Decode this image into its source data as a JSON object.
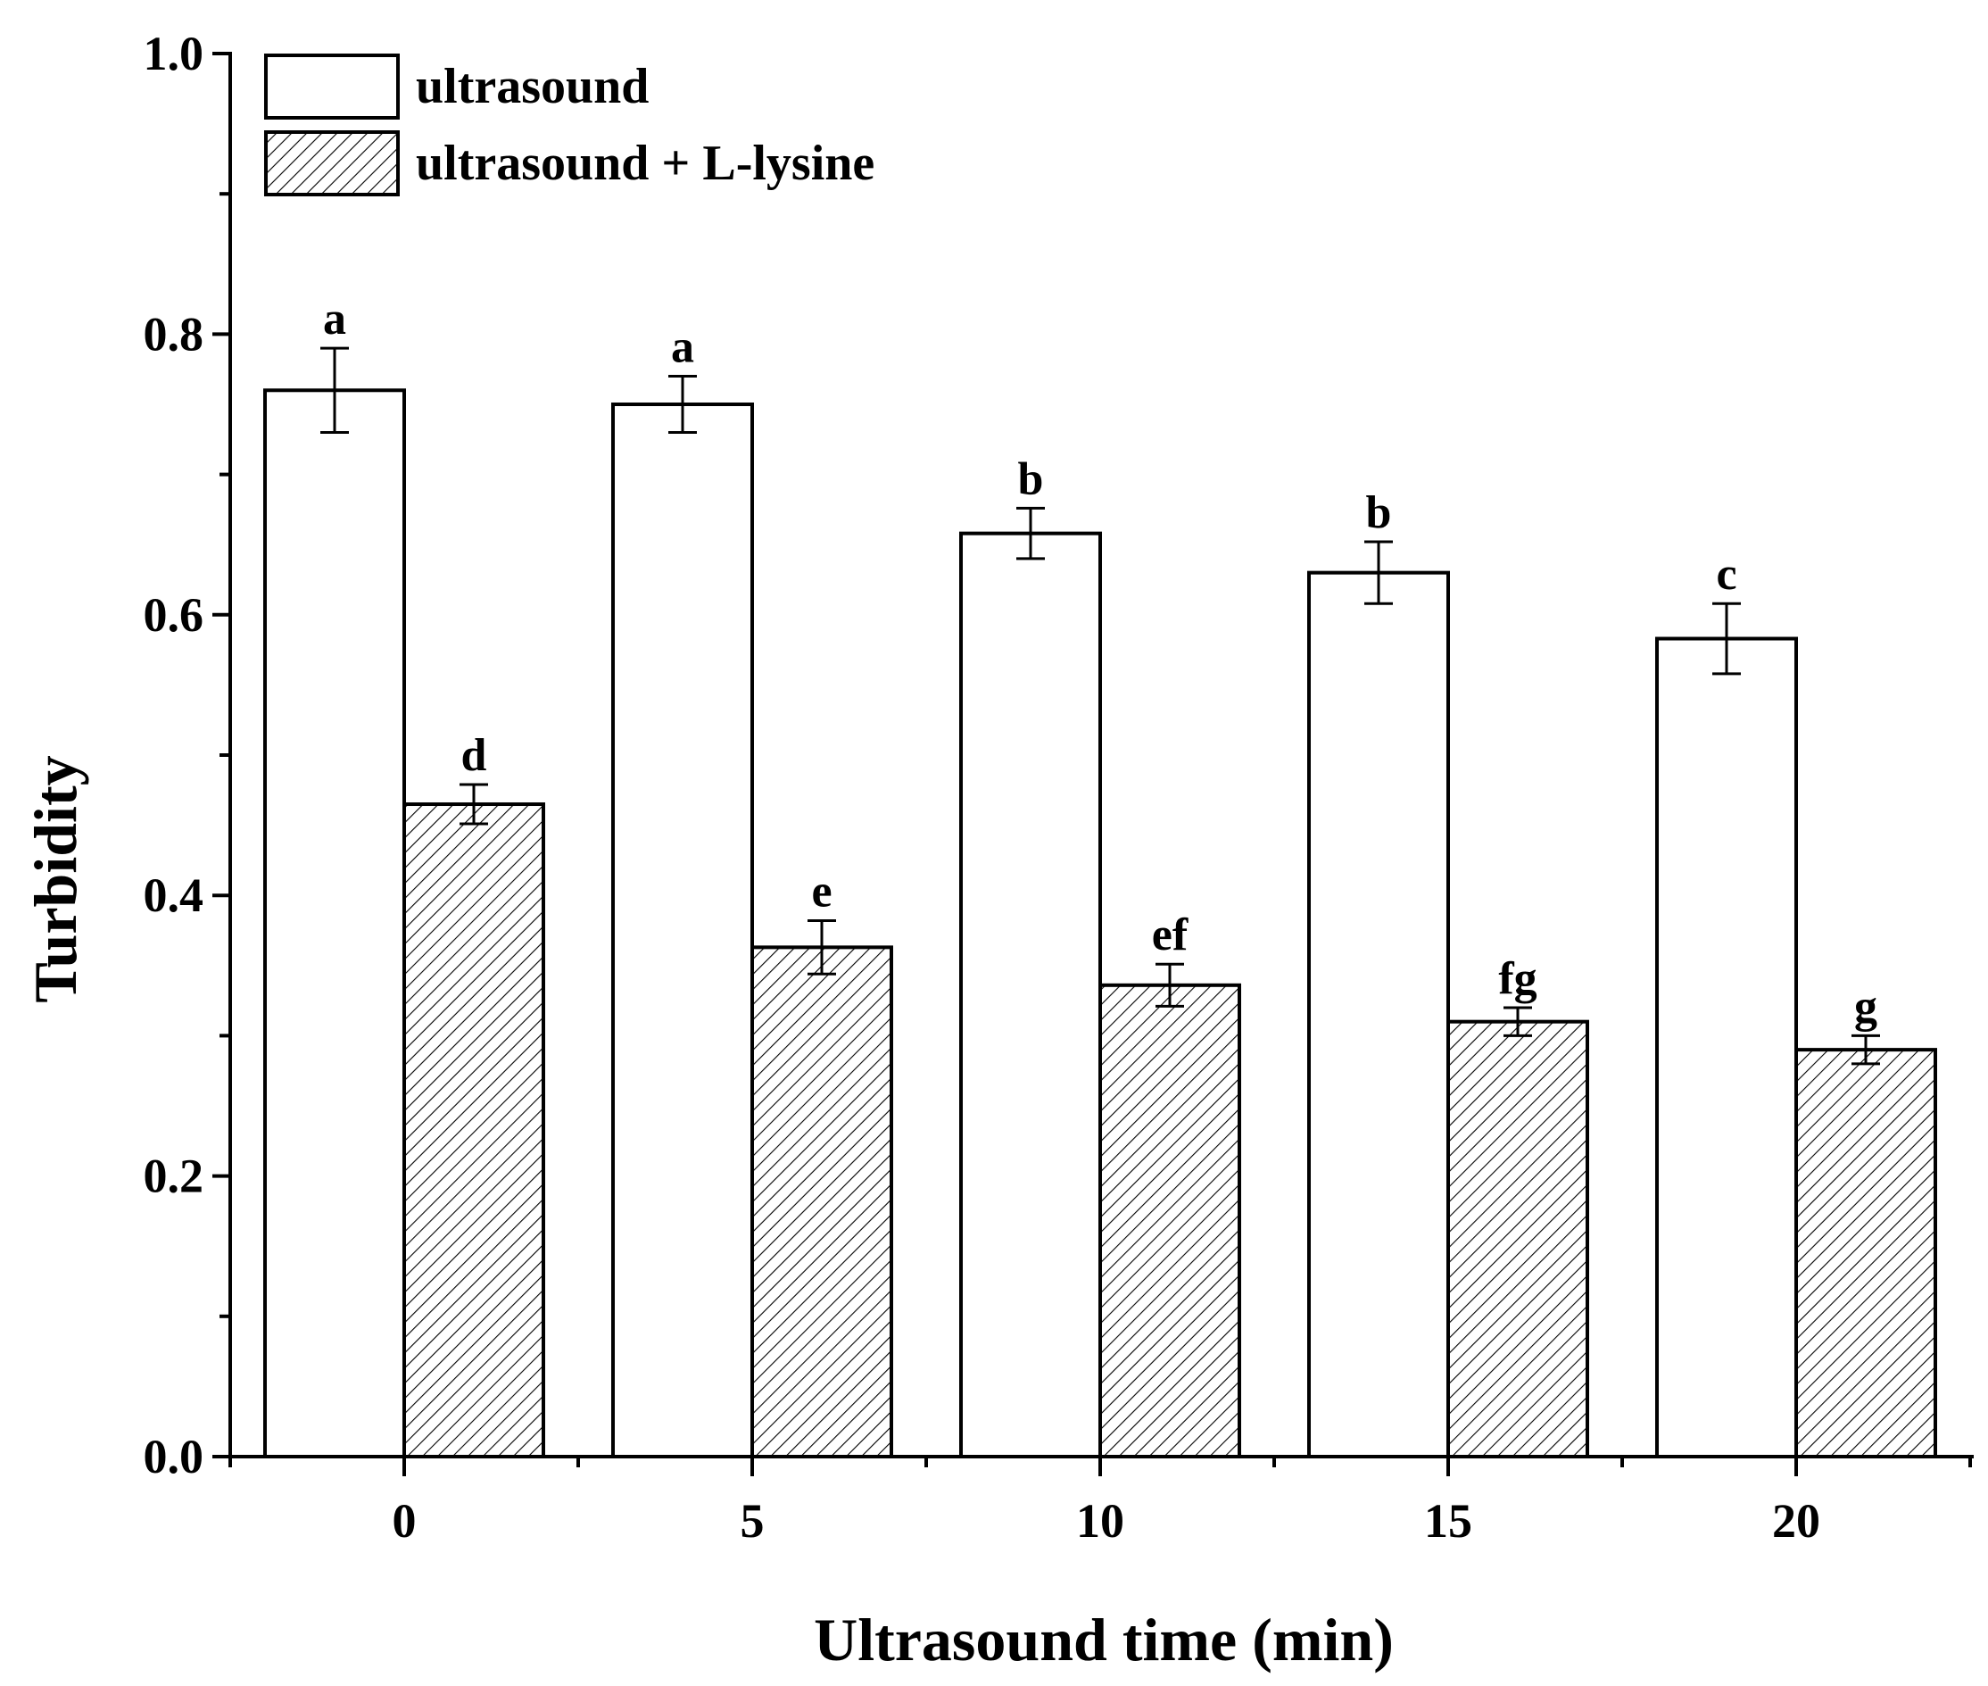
{
  "chart_data": {
    "type": "bar",
    "title": "",
    "xlabel": "Ultrasound time (min)",
    "ylabel": "Turbidity",
    "categories": [
      "0",
      "5",
      "10",
      "15",
      "20"
    ],
    "ylim": [
      0,
      1.0
    ],
    "yticks": [
      "0.0",
      "0.2",
      "0.4",
      "0.6",
      "0.8",
      "1.0"
    ],
    "legend_position": "top-left",
    "series": [
      {
        "name": "ultrasound",
        "fill": "white",
        "values": [
          0.76,
          0.75,
          0.658,
          0.63,
          0.583
        ],
        "errors": [
          0.03,
          0.02,
          0.018,
          0.022,
          0.025
        ],
        "labels": [
          "a",
          "a",
          "b",
          "b",
          "c"
        ]
      },
      {
        "name": "ultrasound + L-lysine",
        "fill": "hatched",
        "values": [
          0.465,
          0.363,
          0.336,
          0.31,
          0.29
        ],
        "errors": [
          0.014,
          0.019,
          0.015,
          0.01,
          0.01
        ],
        "labels": [
          "d",
          "e",
          "ef",
          "fg",
          "g"
        ]
      }
    ]
  },
  "colors": {
    "axis": "#000000",
    "bar_fill": "#ffffff",
    "hatch": "#000000"
  }
}
